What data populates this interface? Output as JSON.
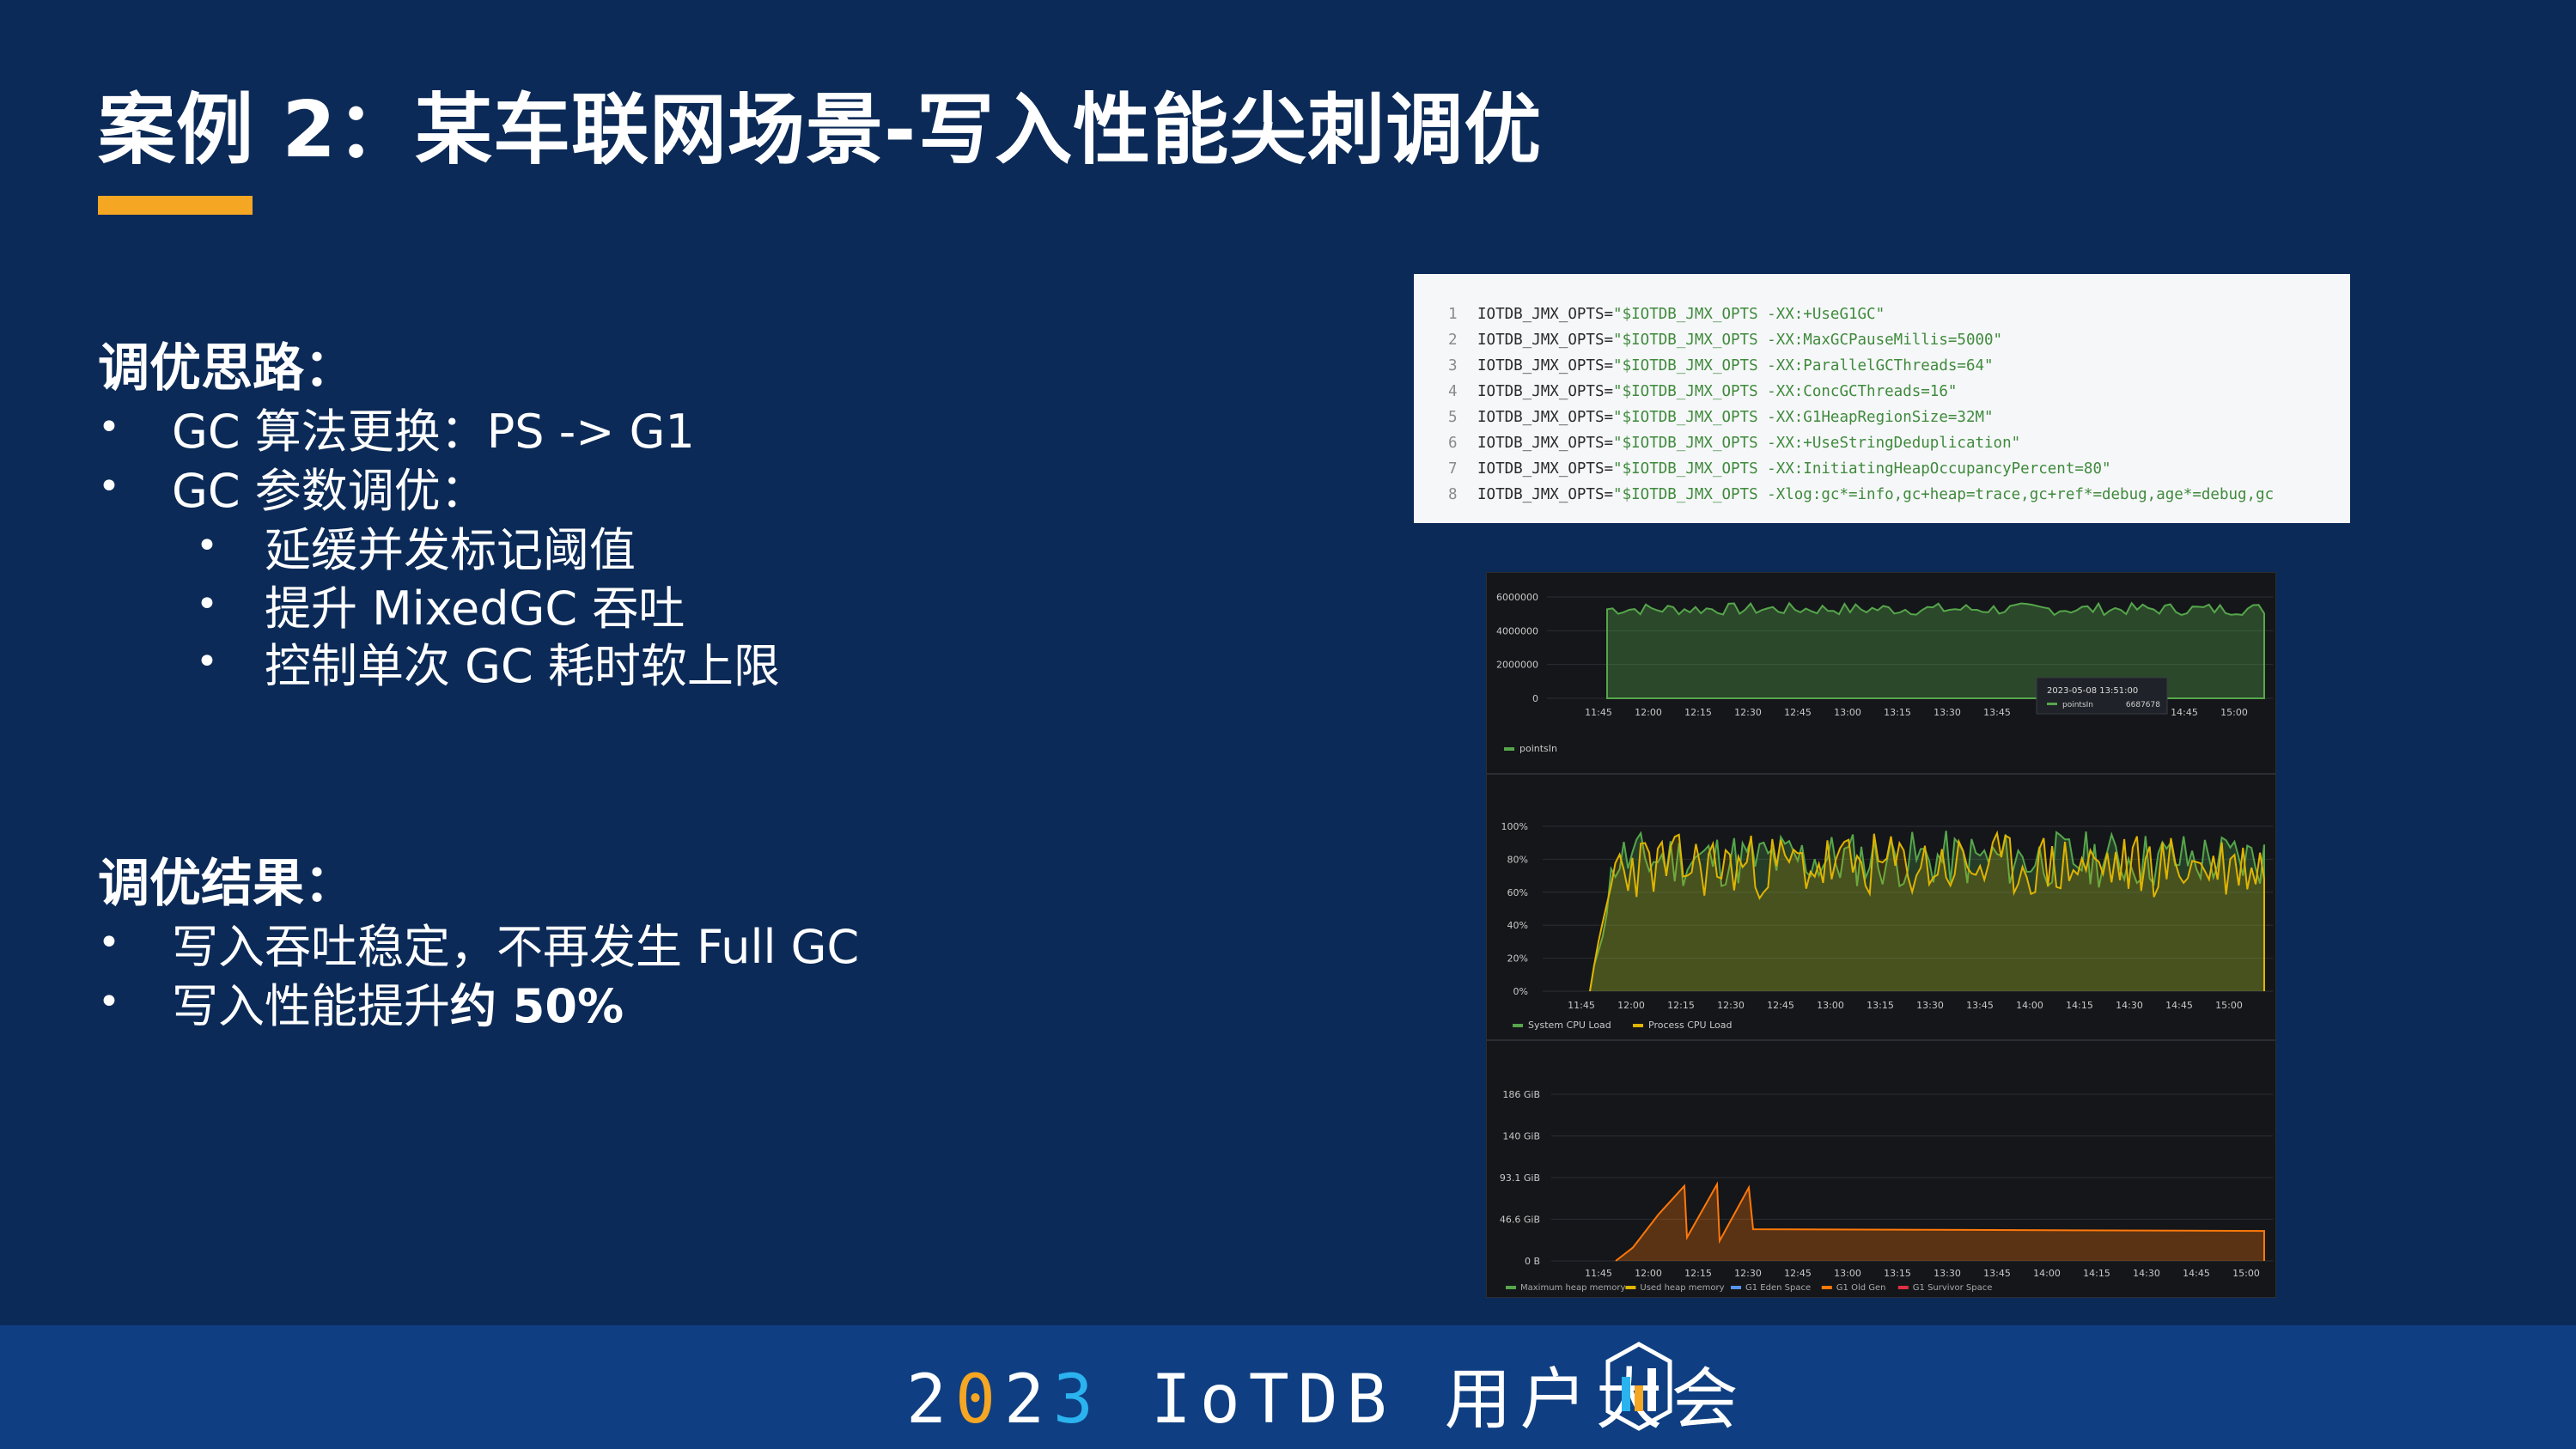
{
  "slide": {
    "title": "案例 2：某车联网场景-写入性能尖刺调优",
    "approach": {
      "heading": "调优思路：",
      "items": [
        "GC 算法更换：PS  -> G1",
        "GC 参数调优："
      ],
      "subitems": [
        "延缓并发标记阈值",
        "提升 MixedGC 吞吐",
        "控制单次 GC 耗时软上限"
      ]
    },
    "result": {
      "heading": "调优结果：",
      "item1": "写入吞吐稳定，不再发生 Full GC",
      "item2_prefix": "写入性能提升",
      "item2_bold": "约 50%"
    }
  },
  "code": {
    "lines": [
      {
        "n": "1",
        "var": "IOTDB_JMX_OPTS=",
        "str": "\"$IOTDB_JMX_OPTS -XX:+UseG1GC\""
      },
      {
        "n": "2",
        "var": "IOTDB_JMX_OPTS=",
        "str": "\"$IOTDB_JMX_OPTS -XX:MaxGCPauseMillis=5000\""
      },
      {
        "n": "3",
        "var": "IOTDB_JMX_OPTS=",
        "str": "\"$IOTDB_JMX_OPTS -XX:ParallelGCThreads=64\""
      },
      {
        "n": "4",
        "var": "IOTDB_JMX_OPTS=",
        "str": "\"$IOTDB_JMX_OPTS -XX:ConcGCThreads=16\""
      },
      {
        "n": "5",
        "var": "IOTDB_JMX_OPTS=",
        "str": "\"$IOTDB_JMX_OPTS -XX:G1HeapRegionSize=32M\""
      },
      {
        "n": "6",
        "var": "IOTDB_JMX_OPTS=",
        "str": "\"$IOTDB_JMX_OPTS -XX:+UseStringDeduplication\""
      },
      {
        "n": "7",
        "var": "IOTDB_JMX_OPTS=",
        "str": "\"$IOTDB_JMX_OPTS -XX:InitiatingHeapOccupancyPercent=80\""
      },
      {
        "n": "8",
        "var": "IOTDB_JMX_OPTS=",
        "str": "\"$IOTDB_JMX_OPTS -Xlog:gc*=info,gc+heap=trace,gc+ref*=debug,age*=debug,gc"
      }
    ]
  },
  "charts": {
    "points": {
      "y_ticks": [
        "6000000",
        "4000000",
        "2000000",
        "0"
      ],
      "x_ticks": [
        "11:45",
        "12:00",
        "12:15",
        "12:30",
        "12:45",
        "13:00",
        "13:15",
        "13:30",
        "13:45",
        "14:45",
        "15:00"
      ],
      "legend": "pointsIn",
      "tooltip_time": "2023-05-08 13:51:00",
      "tooltip_label": "pointsIn",
      "tooltip_value": "6687678",
      "color_line": "#56a64b"
    },
    "cpu": {
      "y_ticks": [
        "100%",
        "80%",
        "60%",
        "40%",
        "20%",
        "0%"
      ],
      "x_ticks": [
        "11:45",
        "12:00",
        "12:15",
        "12:30",
        "12:45",
        "13:00",
        "13:15",
        "13:30",
        "13:45",
        "14:00",
        "14:15",
        "14:30",
        "14:45",
        "15:00"
      ],
      "legend": [
        "System CPU Load",
        "Process CPU Load"
      ],
      "color_system": "#56a64b",
      "color_process": "#e0b400"
    },
    "heap": {
      "y_ticks": [
        "186 GiB",
        "140 GiB",
        "93.1 GiB",
        "46.6 GiB",
        "0 B"
      ],
      "x_ticks": [
        "11:45",
        "12:00",
        "12:15",
        "12:30",
        "12:45",
        "13:00",
        "13:15",
        "13:30",
        "13:45",
        "14:00",
        "14:15",
        "14:30",
        "14:45",
        "15:00"
      ],
      "legend": [
        "Maximum heap memory",
        "Used heap memory",
        "G1 Eden Space",
        "G1 Old Gen",
        "G1 Survivor Space"
      ],
      "legend_colors": [
        "#56a64b",
        "#e0b400",
        "#5794f2",
        "#ff780a",
        "#e02f44"
      ]
    }
  },
  "footer": {
    "year_a": "2",
    "year_b": "0",
    "year_c": "2",
    "year_d": "3",
    "rest": " IoTDB 用户大会",
    "logo": "IoTDB logo"
  }
}
